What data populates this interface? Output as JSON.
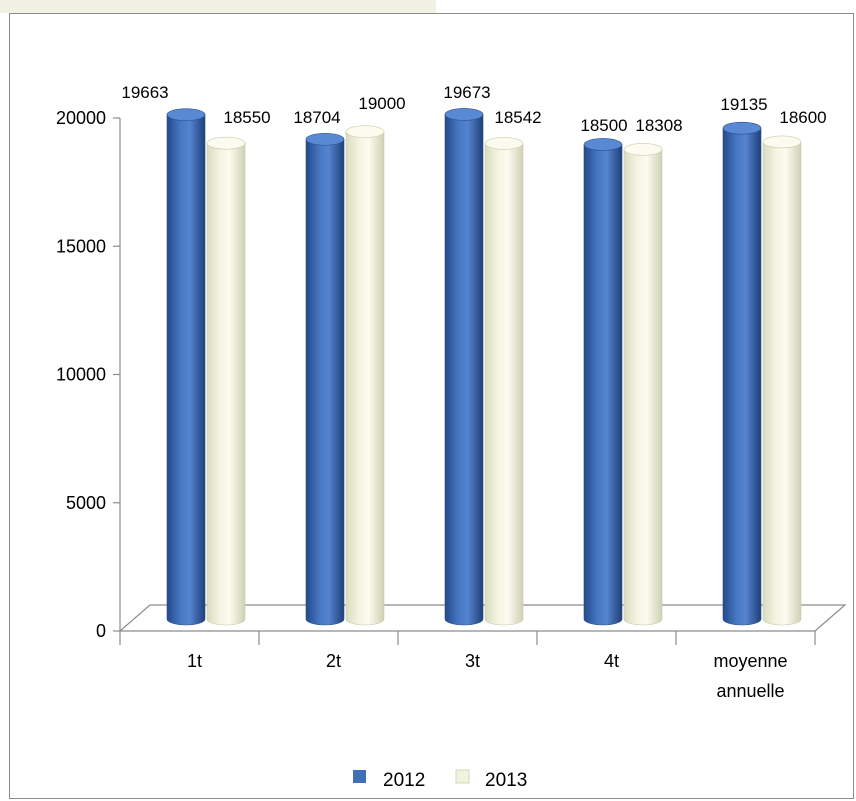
{
  "chart_data": {
    "type": "bar",
    "categories": [
      "1t",
      "2t",
      "3t",
      "4t",
      "moyenne annuelle"
    ],
    "category_lines": [
      [
        "1t"
      ],
      [
        "2t"
      ],
      [
        "3t"
      ],
      [
        "4t"
      ],
      [
        "moyenne",
        "annuelle"
      ]
    ],
    "series": [
      {
        "name": "2012",
        "values": [
          19663,
          18704,
          19673,
          18500,
          19135
        ],
        "labels": [
          "19663",
          "18704",
          "19673",
          "18500",
          "19135"
        ],
        "color": "#3f6fb7"
      },
      {
        "name": "2013",
        "values": [
          18550,
          19000,
          18542,
          18308,
          18600
        ],
        "labels": [
          "18550",
          "19000",
          "18542",
          "18308",
          "18600"
        ],
        "color": "#f2f3de"
      }
    ],
    "ylim": [
      0,
      20000
    ],
    "yticks": [
      "0",
      "5000",
      "10000",
      "15000",
      "20000"
    ],
    "ytick_values": [
      0,
      5000,
      10000,
      15000,
      20000
    ],
    "legend_position": "bottom",
    "style": "3d-cylinder",
    "grid": false
  }
}
